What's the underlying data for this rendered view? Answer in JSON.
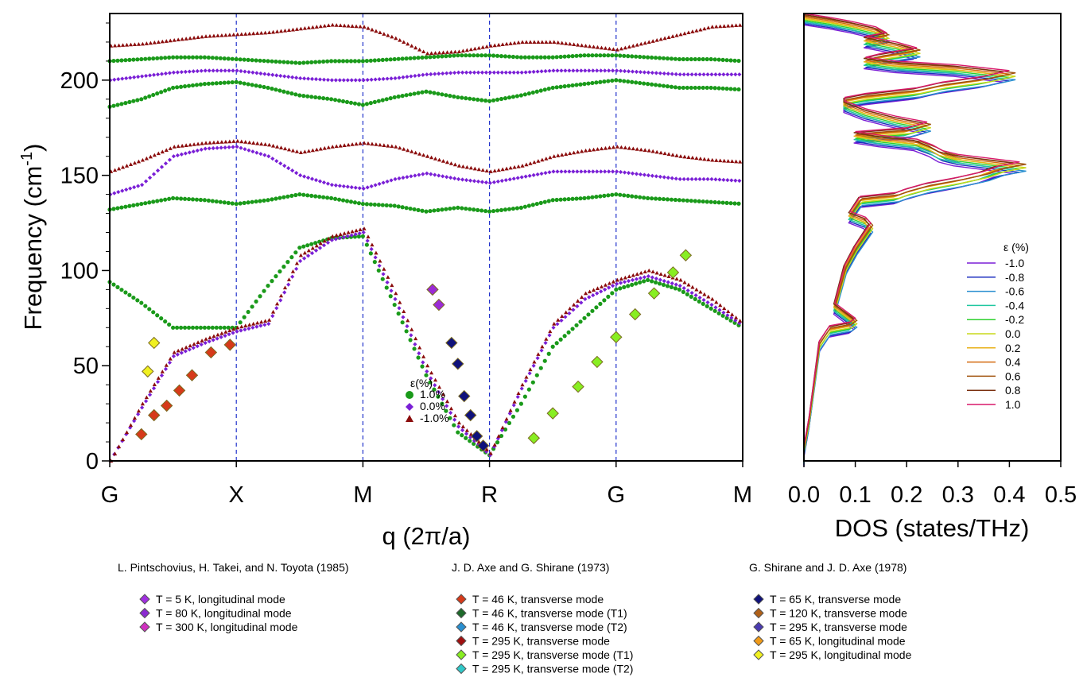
{
  "chart_data": [
    {
      "type": "scatter",
      "xlabel": "q (2π/a)",
      "ylabel": "Frequency (cm-1)",
      "ylabel_text": "Frequency (cm",
      "ylabel_sup": "-1",
      "ylabel_close": ")",
      "ylim": [
        0,
        235
      ],
      "y_ticks": [
        "0",
        "50",
        "100",
        "150",
        "200"
      ],
      "x_ticks": [
        "G",
        "X",
        "M",
        "R",
        "G",
        "M"
      ],
      "grid": "dashed vertical lines at high-symmetry points",
      "legend": {
        "title": "ε(%)",
        "position": "center",
        "entries": [
          {
            "label": "1.0%",
            "marker": "circle",
            "color": "#1a9a1a"
          },
          {
            "label": "0.0%",
            "marker": "diamond",
            "color": "#7a1fd6"
          },
          {
            "label": "-1.0%",
            "marker": "triangle",
            "color": "#8b0d0d"
          }
        ]
      },
      "series": [
        {
          "name": "1.0%",
          "marker": "circle",
          "color": "#1a9a1a",
          "branches": [
            {
              "x": [
                0,
                0.25,
                0.5,
                0.75,
                1.0,
                1.25,
                1.5,
                1.75,
                2.0,
                2.25,
                2.5,
                2.75,
                3.0,
                3.25,
                3.5,
                3.75,
                4.0,
                4.25,
                4.5,
                4.75,
                5.0
              ],
              "y": [
                94,
                83,
                70,
                70,
                70,
                92,
                112,
                117,
                118,
                82,
                45,
                15,
                3,
                30,
                60,
                75,
                90,
                95,
                90,
                80,
                70
              ]
            },
            {
              "x": [
                0,
                0.25,
                0.5,
                0.75,
                1.0,
                1.25,
                1.5,
                1.75,
                2.0,
                2.25,
                2.5,
                2.75,
                3.0,
                3.25,
                3.5,
                3.75,
                4.0,
                4.25,
                4.5,
                4.75,
                5.0
              ],
              "y": [
                132,
                135,
                138,
                137,
                135,
                137,
                140,
                138,
                135,
                134,
                131,
                133,
                131,
                133,
                137,
                138,
                140,
                138,
                137,
                136,
                135
              ]
            },
            {
              "x": [
                0,
                0.25,
                0.5,
                0.75,
                1.0,
                1.25,
                1.5,
                1.75,
                2.0,
                2.25,
                2.5,
                2.75,
                3.0,
                3.25,
                3.5,
                3.75,
                4.0,
                4.25,
                4.5,
                4.75,
                5.0
              ],
              "y": [
                186,
                190,
                196,
                198,
                199,
                196,
                192,
                190,
                187,
                191,
                194,
                191,
                189,
                192,
                196,
                198,
                200,
                198,
                196,
                196,
                195
              ]
            },
            {
              "x": [
                0,
                0.25,
                0.5,
                0.75,
                1.0,
                1.25,
                1.5,
                1.75,
                2.0,
                2.25,
                2.5,
                2.75,
                3.0,
                3.25,
                3.5,
                3.75,
                4.0,
                4.25,
                4.5,
                4.75,
                5.0
              ],
              "y": [
                210,
                211,
                212,
                212,
                211,
                210,
                209,
                210,
                210,
                211,
                212,
                213,
                213,
                212,
                212,
                213,
                213,
                212,
                211,
                211,
                210
              ]
            }
          ]
        },
        {
          "name": "0.0%",
          "marker": "diamond",
          "color": "#7a1fd6",
          "branches": [
            {
              "x": [
                0,
                0.25,
                0.5,
                0.75,
                1.0,
                1.25,
                1.5,
                1.75,
                2.0,
                2.25,
                2.5,
                2.75,
                3.0,
                3.25,
                3.5,
                3.75,
                4.0,
                4.25,
                4.5,
                4.75,
                5.0
              ],
              "y": [
                0,
                28,
                55,
                62,
                68,
                72,
                105,
                116,
                120,
                85,
                47,
                18,
                3,
                38,
                70,
                85,
                93,
                97,
                92,
                82,
                71
              ]
            },
            {
              "x": [
                0,
                0.25,
                0.5,
                0.75,
                1.0,
                1.25,
                1.5,
                1.75,
                2.0,
                2.25,
                2.5,
                2.75,
                3.0,
                3.25,
                3.5,
                3.75,
                4.0,
                4.25,
                4.5,
                4.75,
                5.0
              ],
              "y": [
                140,
                145,
                160,
                164,
                165,
                160,
                150,
                145,
                143,
                148,
                151,
                148,
                146,
                149,
                152,
                152,
                152,
                150,
                148,
                148,
                147
              ]
            },
            {
              "x": [
                0,
                0.25,
                0.5,
                0.75,
                1.0,
                1.25,
                1.5,
                1.75,
                2.0,
                2.25,
                2.5,
                2.75,
                3.0,
                3.25,
                3.5,
                3.75,
                4.0,
                4.25,
                4.5,
                4.75,
                5.0
              ],
              "y": [
                200,
                202,
                204,
                205,
                205,
                203,
                201,
                200,
                200,
                201,
                203,
                204,
                204,
                204,
                205,
                205,
                205,
                204,
                203,
                203,
                203
              ]
            }
          ]
        },
        {
          "name": "-1.0%",
          "marker": "triangle",
          "color": "#8b0d0d",
          "branches": [
            {
              "x": [
                0,
                0.25,
                0.5,
                0.75,
                1.0,
                1.25,
                1.5,
                1.75,
                2.0,
                2.25,
                2.5,
                2.75,
                3.0,
                3.25,
                3.5,
                3.75,
                4.0,
                4.25,
                4.5,
                4.75,
                5.0
              ],
              "y": [
                0,
                30,
                57,
                64,
                70,
                74,
                108,
                118,
                122,
                88,
                50,
                20,
                4,
                40,
                72,
                88,
                95,
                100,
                95,
                85,
                72
              ]
            },
            {
              "x": [
                0,
                0.25,
                0.5,
                0.75,
                1.0,
                1.25,
                1.5,
                1.75,
                2.0,
                2.25,
                2.5,
                2.75,
                3.0,
                3.25,
                3.5,
                3.75,
                4.0,
                4.25,
                4.5,
                4.75,
                5.0
              ],
              "y": [
                152,
                158,
                165,
                167,
                168,
                166,
                162,
                165,
                167,
                165,
                160,
                155,
                152,
                155,
                160,
                163,
                165,
                163,
                160,
                158,
                157
              ]
            },
            {
              "x": [
                0,
                0.25,
                0.5,
                0.75,
                1.0,
                1.25,
                1.5,
                1.75,
                2.0,
                2.25,
                2.5,
                2.75,
                3.0,
                3.25,
                3.5,
                3.75,
                4.0,
                4.25,
                4.5,
                4.75,
                5.0
              ],
              "y": [
                218,
                219,
                221,
                223,
                224,
                225,
                227,
                229,
                228,
                222,
                214,
                215,
                218,
                220,
                220,
                218,
                216,
                220,
                224,
                228,
                229
              ]
            }
          ]
        }
      ],
      "experimental": [
        {
          "name": "T = 5 K, longitudinal mode",
          "color": "#9b2bd6",
          "points": [
            [
              2.6,
              82
            ],
            [
              2.55,
              90
            ]
          ]
        },
        {
          "name": "T = 46 K, transverse mode",
          "color": "#d63a1a",
          "points": [
            [
              0.25,
              14
            ],
            [
              0.35,
              24
            ],
            [
              0.45,
              29
            ],
            [
              0.55,
              37
            ],
            [
              0.65,
              45
            ],
            [
              0.8,
              57
            ],
            [
              0.95,
              61
            ]
          ]
        },
        {
          "name": "T = 295 K, transverse mode (T1)",
          "color": "#88ee22",
          "points": [
            [
              3.35,
              12
            ],
            [
              3.5,
              25
            ],
            [
              3.7,
              39
            ],
            [
              3.85,
              52
            ],
            [
              4.0,
              65
            ],
            [
              4.15,
              77
            ],
            [
              4.3,
              88
            ],
            [
              4.45,
              99
            ],
            [
              4.55,
              108
            ]
          ]
        },
        {
          "name": "T = 65 K, transverse mode",
          "color": "#10127a",
          "points": [
            [
              2.95,
              8
            ],
            [
              2.9,
              13
            ],
            [
              2.85,
              24
            ],
            [
              2.8,
              34
            ],
            [
              2.75,
              51
            ],
            [
              2.7,
              62
            ]
          ]
        },
        {
          "name": "T = 295 K, longitudinal mode",
          "color": "#f0f020",
          "points": [
            [
              0.3,
              47
            ],
            [
              0.35,
              62
            ]
          ]
        }
      ]
    },
    {
      "type": "line",
      "xlabel": "DOS (states/THz)",
      "xlim": [
        0,
        0.5
      ],
      "x_ticks": [
        "0.0",
        "0.1",
        "0.2",
        "0.3",
        "0.4",
        "0.5"
      ],
      "legend": {
        "title": "ε (%)",
        "position": "right",
        "entries": [
          {
            "label": "-1.0",
            "color": "#7b1fd6"
          },
          {
            "label": "-0.8",
            "color": "#1c2fbf"
          },
          {
            "label": "-0.6",
            "color": "#2a8fd0"
          },
          {
            "label": "-0.4",
            "color": "#1fc7a0"
          },
          {
            "label": "-0.2",
            "color": "#2ed12e"
          },
          {
            "label": "0.0",
            "color": "#c8d81a"
          },
          {
            "label": "0.2",
            "color": "#e8b018"
          },
          {
            "label": "0.4",
            "color": "#d46a10"
          },
          {
            "label": "0.6",
            "color": "#a0520c"
          },
          {
            "label": "0.8",
            "color": "#7a3010"
          },
          {
            "label": "1.0",
            "color": "#d8186a"
          }
        ]
      },
      "profile": {
        "freq": [
          0,
          5,
          20,
          40,
          60,
          68,
          70,
          72,
          80,
          100,
          110,
          118,
          122,
          125,
          128,
          132,
          136,
          138,
          140,
          143,
          146,
          149,
          152,
          154,
          156,
          158,
          160,
          163,
          166,
          168,
          170,
          172,
          175,
          178,
          182,
          186,
          188,
          190,
          193,
          196,
          199,
          202,
          205,
          207,
          209,
          211,
          214,
          217,
          220,
          222,
          225,
          228,
          230,
          232
        ],
        "dos": [
          0,
          0.0,
          0.01,
          0.02,
          0.03,
          0.05,
          0.09,
          0.1,
          0.06,
          0.08,
          0.1,
          0.12,
          0.13,
          0.12,
          0.09,
          0.1,
          0.11,
          0.18,
          0.2,
          0.24,
          0.3,
          0.35,
          0.38,
          0.42,
          0.36,
          0.3,
          0.27,
          0.25,
          0.22,
          0.15,
          0.1,
          0.2,
          0.24,
          0.18,
          0.12,
          0.08,
          0.08,
          0.12,
          0.22,
          0.27,
          0.35,
          0.4,
          0.3,
          0.18,
          0.12,
          0.15,
          0.22,
          0.18,
          0.12,
          0.16,
          0.14,
          0.09,
          0.05,
          0
        ]
      }
    }
  ],
  "references": [
    {
      "title": "L. Pintschovius, H. Takei, and N. Toyota  (1985)",
      "entries": [
        {
          "label": "T = 5 K,     longitudinal mode",
          "color": "#a12fe0"
        },
        {
          "label": "T = 80 K,   longitudinal mode",
          "color": "#8a2ad0"
        },
        {
          "label": "T = 300 K, longitudinal mode",
          "color": "#d030c0"
        }
      ]
    },
    {
      "title": "J. D. Axe and G. Shirane (1973)",
      "entries": [
        {
          "label": "T = 46 K,   transverse mode",
          "color": "#d63a1a"
        },
        {
          "label": "T = 46 K,   transverse mode (T1)",
          "color": "#1e6a2a"
        },
        {
          "label": "T = 46 K,   transverse mode (T2)",
          "color": "#2a8fd0"
        },
        {
          "label": "T = 295 K, transverse mode",
          "color": "#a01010"
        },
        {
          "label": "T = 295 K, transverse mode (T1)",
          "color": "#88ee22"
        },
        {
          "label": "T = 295 K, transverse mode (T2)",
          "color": "#30c8c8"
        }
      ]
    },
    {
      "title": "G. Shirane and J. D. Axe (1978)",
      "entries": [
        {
          "label": "T = 65 K,   transverse mode",
          "color": "#10127a"
        },
        {
          "label": "T = 120 K, transverse mode",
          "color": "#b06018"
        },
        {
          "label": "T = 295 K, transverse mode",
          "color": "#4a3ab0"
        },
        {
          "label": "T = 65 K,   longitudinal mode",
          "color": "#f09a18"
        },
        {
          "label": "T = 295 K, longitudinal mode",
          "color": "#f0f020"
        }
      ]
    }
  ]
}
